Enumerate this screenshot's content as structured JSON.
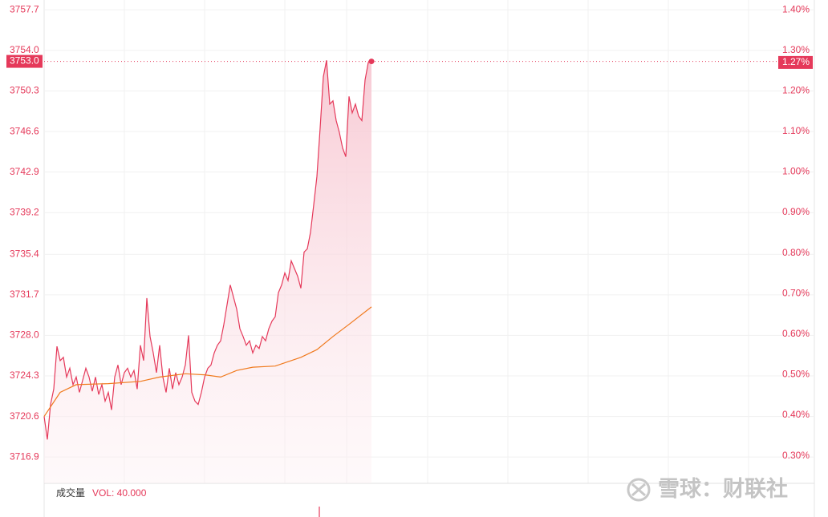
{
  "chart_data": {
    "type": "line",
    "xlim": [
      0,
      240
    ],
    "ylim": [
      3714.5,
      3758.6
    ],
    "y2lim": [
      0.232,
      1.424
    ],
    "yticks": [
      3757.7,
      {
        "value": 3754,
        "label": "3754.0"
      },
      3750.3,
      3746.6,
      3742.9,
      3739.2,
      3735.4,
      3731.7,
      {
        "value": 3728,
        "label": "3728.0"
      },
      3724.3,
      3720.6,
      3716.9
    ],
    "y2ticks": [
      {
        "value": 1.4,
        "label": "1.40%"
      },
      {
        "value": 1.3,
        "label": "1.30%"
      },
      {
        "value": 1.2,
        "label": "1.20%"
      },
      {
        "value": 1.1,
        "label": "1.10%"
      },
      {
        "value": 1.0,
        "label": "1.00%"
      },
      {
        "value": 0.9,
        "label": "0.90%"
      },
      {
        "value": 0.8,
        "label": "0.80%"
      },
      {
        "value": 0.7,
        "label": "0.70%"
      },
      {
        "value": 0.6,
        "label": "0.60%"
      },
      {
        "value": 0.5,
        "label": "0.50%"
      },
      {
        "value": 0.4,
        "label": "0.40%"
      },
      {
        "value": 0.3,
        "label": "0.30%"
      }
    ],
    "grid": true,
    "series": [
      {
        "color": "#e5395a",
        "area": true,
        "values": [
          3720.6,
          3718.5,
          3721.7,
          3723.1,
          3727.0,
          3725.7,
          3726.0,
          3724.2,
          3725.0,
          3723.5,
          3724.2,
          3722.8,
          3723.9,
          3725.0,
          3724.2,
          3722.9,
          3724.2,
          3722.6,
          3723.5,
          3722.0,
          3722.8,
          3721.2,
          3724.2,
          3725.3,
          3723.5,
          3724.6,
          3725.0,
          3724.2,
          3724.8,
          3723.1,
          3727.1,
          3725.7,
          3731.4,
          3727.9,
          3726.4,
          3724.6,
          3727.1,
          3724.2,
          3722.8,
          3725.0,
          3723.1,
          3724.6,
          3723.5,
          3724.2,
          3725.3,
          3728.0,
          3722.8,
          3722.0,
          3721.7,
          3722.8,
          3724.2,
          3725.0,
          3725.3,
          3726.4,
          3727.1,
          3727.5,
          3729.0,
          3730.8,
          3732.6,
          3731.5,
          3730.4,
          3728.6,
          3727.9,
          3727.1,
          3727.5,
          3726.4,
          3727.1,
          3726.8,
          3727.9,
          3727.5,
          3728.6,
          3729.3,
          3729.7,
          3731.9,
          3732.6,
          3733.7,
          3733.0,
          3734.8,
          3734.1,
          3733.4,
          3732.3,
          3735.6,
          3735.9,
          3737.4,
          3739.9,
          3742.5,
          3746.9,
          3751.6,
          3753.1,
          3749.1,
          3749.4,
          3747.6,
          3746.5,
          3745.1,
          3744.3,
          3749.8,
          3748.3,
          3749.1,
          3748.0,
          3747.6,
          3751.3,
          3752.9,
          3753.0
        ]
      },
      {
        "color": "#f07a1e",
        "x": [
          0,
          5,
          10,
          20,
          30,
          36,
          44,
          50,
          55,
          60,
          65,
          72,
          80,
          85,
          90,
          95,
          102
        ],
        "values": [
          3720.6,
          3722.8,
          3723.5,
          3723.6,
          3723.8,
          3724.2,
          3724.5,
          3724.4,
          3724.2,
          3724.8,
          3725.1,
          3725.2,
          3726.0,
          3726.7,
          3727.9,
          3729.0,
          3730.6
        ]
      }
    ],
    "last_value": {
      "value": 3753,
      "label": "3753.0"
    },
    "last_change": {
      "value": 1.27,
      "label": "1.27%"
    },
    "volume_title": "成交量",
    "volume_label": "VOL: 40.000"
  },
  "watermark": "雪球：财联社"
}
